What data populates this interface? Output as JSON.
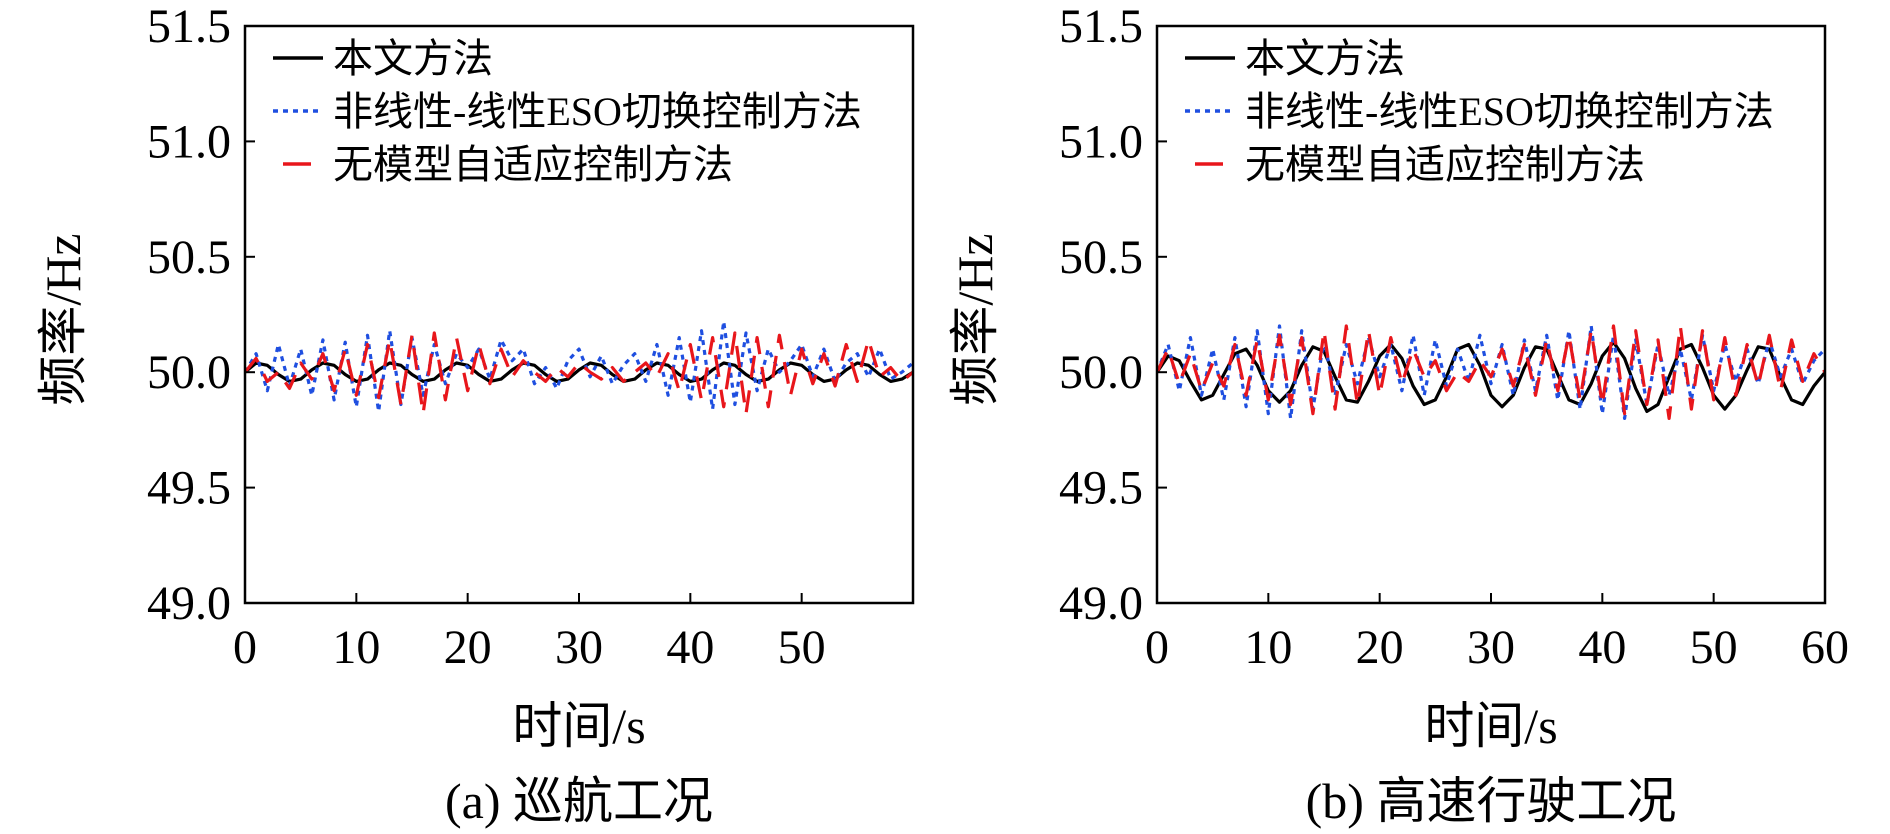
{
  "chart_data": [
    {
      "type": "line",
      "caption": "(a) 巡航工况",
      "xlabel": "时间/s",
      "ylabel": "频率/Hz",
      "xlim": [
        0,
        60
      ],
      "ylim": [
        49.0,
        51.5
      ],
      "xticks": [
        "0",
        "10",
        "20",
        "30",
        "40",
        "50"
      ],
      "yticks": [
        "49.0",
        "49.5",
        "50.0",
        "50.5",
        "51.0",
        "51.5"
      ],
      "legend_position": "top-left",
      "series": [
        {
          "name": "本文方法",
          "color": "#000000",
          "style": "solid",
          "x": [
            0,
            1,
            2,
            3,
            4,
            5,
            6,
            7,
            8,
            9,
            10,
            11,
            12,
            13,
            14,
            15,
            16,
            17,
            18,
            19,
            20,
            21,
            22,
            23,
            24,
            25,
            26,
            27,
            28,
            29,
            30,
            31,
            32,
            33,
            34,
            35,
            36,
            37,
            38,
            39,
            40,
            41,
            42,
            43,
            44,
            45,
            46,
            47,
            48,
            49,
            50,
            51,
            52,
            53,
            54,
            55,
            56,
            57,
            58,
            59,
            60
          ],
          "y": [
            50.0,
            50.04,
            50.03,
            49.99,
            49.96,
            49.97,
            50.01,
            50.04,
            50.03,
            49.99,
            49.96,
            49.97,
            50.01,
            50.04,
            50.03,
            49.99,
            49.96,
            49.97,
            50.01,
            50.04,
            50.03,
            49.99,
            49.96,
            49.97,
            50.01,
            50.04,
            50.03,
            49.99,
            49.96,
            49.97,
            50.01,
            50.04,
            50.03,
            49.99,
            49.96,
            49.97,
            50.01,
            50.04,
            50.03,
            49.99,
            49.96,
            49.97,
            50.01,
            50.04,
            50.03,
            49.99,
            49.96,
            49.97,
            50.01,
            50.04,
            50.03,
            49.99,
            49.96,
            49.97,
            50.01,
            50.04,
            50.03,
            49.99,
            49.96,
            49.97,
            50.0
          ]
        },
        {
          "name": "非线性-线性ESO切换控制方法",
          "color": "#1f4fe0",
          "style": "dotted",
          "x": [
            0,
            1,
            2,
            3,
            4,
            5,
            6,
            7,
            8,
            9,
            10,
            11,
            12,
            13,
            14,
            15,
            16,
            17,
            18,
            19,
            20,
            21,
            22,
            23,
            24,
            25,
            26,
            27,
            28,
            29,
            30,
            31,
            32,
            33,
            34,
            35,
            36,
            37,
            38,
            39,
            40,
            41,
            42,
            43,
            44,
            45,
            46,
            47,
            48,
            49,
            50,
            51,
            52,
            53,
            54,
            55,
            56,
            57,
            58,
            59,
            60
          ],
          "y": [
            50.0,
            50.08,
            49.92,
            50.12,
            49.94,
            50.1,
            49.9,
            50.14,
            49.88,
            50.13,
            49.85,
            50.16,
            49.83,
            50.18,
            49.86,
            50.15,
            49.9,
            50.12,
            49.95,
            50.08,
            50.02,
            50.1,
            49.97,
            50.14,
            50.05,
            50.1,
            49.95,
            50.02,
            49.93,
            50.05,
            50.1,
            49.98,
            50.07,
            49.95,
            50.03,
            50.08,
            49.96,
            50.12,
            49.9,
            50.15,
            49.87,
            50.18,
            49.84,
            50.22,
            49.86,
            50.17,
            49.92,
            50.1,
            50.0,
            50.05,
            50.12,
            49.98,
            50.1,
            49.96,
            50.04,
            50.08,
            49.98,
            50.1,
            49.97,
            50.0,
            50.04
          ]
        },
        {
          "name": "无模型自适应控制方法",
          "color": "#e8161b",
          "style": "dashed",
          "x": [
            0,
            1,
            2,
            3,
            4,
            5,
            6,
            7,
            8,
            9,
            10,
            11,
            12,
            13,
            14,
            15,
            16,
            17,
            18,
            19,
            20,
            21,
            22,
            23,
            24,
            25,
            26,
            27,
            28,
            29,
            30,
            31,
            32,
            33,
            34,
            35,
            36,
            37,
            38,
            39,
            40,
            41,
            42,
            43,
            44,
            45,
            46,
            47,
            48,
            49,
            50,
            51,
            52,
            53,
            54,
            55,
            56,
            57,
            58,
            59,
            60
          ],
          "y": [
            50.0,
            50.06,
            49.96,
            50.0,
            49.93,
            50.04,
            49.97,
            50.08,
            49.92,
            50.1,
            49.9,
            50.12,
            49.89,
            50.14,
            49.86,
            50.16,
            49.82,
            50.17,
            49.88,
            50.15,
            49.92,
            50.12,
            49.95,
            50.1,
            49.98,
            50.05,
            50.0,
            49.96,
            50.02,
            49.98,
            50.04,
            50.0,
            49.97,
            50.02,
            49.96,
            50.0,
            50.04,
            49.98,
            50.08,
            49.92,
            50.12,
            49.88,
            50.15,
            49.85,
            50.17,
            49.82,
            50.15,
            49.85,
            50.16,
            49.9,
            50.1,
            49.95,
            50.08,
            49.94,
            50.12,
            49.96,
            50.14,
            49.98,
            50.02,
            49.96,
            50.0
          ]
        }
      ]
    },
    {
      "type": "line",
      "caption": "(b) 高速行驶工况",
      "xlabel": "时间/s",
      "ylabel": "频率/Hz",
      "xlim": [
        0,
        60
      ],
      "ylim": [
        49.0,
        51.5
      ],
      "xticks": [
        "0",
        "10",
        "20",
        "30",
        "40",
        "50",
        "60"
      ],
      "yticks": [
        "49.0",
        "49.5",
        "50.0",
        "50.5",
        "51.0",
        "51.5"
      ],
      "legend_position": "top-left",
      "series": [
        {
          "name": "本文方法",
          "color": "#000000",
          "style": "solid",
          "x": [
            0,
            1,
            2,
            3,
            4,
            5,
            6,
            7,
            8,
            9,
            10,
            11,
            12,
            13,
            14,
            15,
            16,
            17,
            18,
            19,
            20,
            21,
            22,
            23,
            24,
            25,
            26,
            27,
            28,
            29,
            30,
            31,
            32,
            33,
            34,
            35,
            36,
            37,
            38,
            39,
            40,
            41,
            42,
            43,
            44,
            45,
            46,
            47,
            48,
            49,
            50,
            51,
            52,
            53,
            54,
            55,
            56,
            57,
            58,
            59,
            60
          ],
          "y": [
            50.0,
            50.07,
            50.05,
            49.96,
            49.88,
            49.9,
            49.99,
            50.08,
            50.1,
            50.03,
            49.92,
            49.87,
            49.92,
            50.03,
            50.11,
            50.09,
            49.98,
            49.88,
            49.87,
            49.96,
            50.07,
            50.12,
            50.06,
            49.94,
            49.86,
            49.88,
            49.98,
            50.1,
            50.12,
            50.03,
            49.9,
            49.85,
            49.9,
            50.02,
            50.11,
            50.1,
            49.99,
            49.88,
            49.86,
            49.95,
            50.07,
            50.13,
            50.06,
            49.93,
            49.83,
            49.86,
            49.98,
            50.1,
            50.12,
            50.02,
            49.9,
            49.84,
            49.9,
            50.01,
            50.11,
            50.1,
            49.98,
            49.88,
            49.86,
            49.94,
            50.0
          ]
        },
        {
          "name": "非线性-线性ESO切换控制方法",
          "color": "#1f4fe0",
          "style": "dotted",
          "x": [
            0,
            1,
            2,
            3,
            4,
            5,
            6,
            7,
            8,
            9,
            10,
            11,
            12,
            13,
            14,
            15,
            16,
            17,
            18,
            19,
            20,
            21,
            22,
            23,
            24,
            25,
            26,
            27,
            28,
            29,
            30,
            31,
            32,
            33,
            34,
            35,
            36,
            37,
            38,
            39,
            40,
            41,
            42,
            43,
            44,
            45,
            46,
            47,
            48,
            49,
            50,
            51,
            52,
            53,
            54,
            55,
            56,
            57,
            58,
            59,
            60
          ],
          "y": [
            50.0,
            50.12,
            49.92,
            50.15,
            49.9,
            50.1,
            49.88,
            50.15,
            49.85,
            50.18,
            49.82,
            50.2,
            49.8,
            50.18,
            49.84,
            50.14,
            49.9,
            50.12,
            49.95,
            50.15,
            49.98,
            50.12,
            49.92,
            50.16,
            49.9,
            50.14,
            49.94,
            50.1,
            49.96,
            50.16,
            49.95,
            50.12,
            49.9,
            50.14,
            49.92,
            50.16,
            49.88,
            50.18,
            49.84,
            50.2,
            49.82,
            50.16,
            49.8,
            50.14,
            49.86,
            50.12,
            49.9,
            50.1,
            49.88,
            50.16,
            49.92,
            50.12,
            49.96,
            50.1,
            49.95,
            50.14,
            49.98,
            50.1,
            49.95,
            50.05,
            50.1
          ]
        },
        {
          "name": "无模型自适应控制方法",
          "color": "#e8161b",
          "style": "dashed",
          "x": [
            0,
            1,
            2,
            3,
            4,
            5,
            6,
            7,
            8,
            9,
            10,
            11,
            12,
            13,
            14,
            15,
            16,
            17,
            18,
            19,
            20,
            21,
            22,
            23,
            24,
            25,
            26,
            27,
            28,
            29,
            30,
            31,
            32,
            33,
            34,
            35,
            36,
            37,
            38,
            39,
            40,
            41,
            42,
            43,
            44,
            45,
            46,
            47,
            48,
            49,
            50,
            51,
            52,
            53,
            54,
            55,
            56,
            57,
            58,
            59,
            60
          ],
          "y": [
            50.0,
            50.1,
            49.95,
            50.08,
            49.92,
            50.04,
            49.94,
            50.12,
            49.9,
            50.14,
            49.88,
            50.16,
            49.86,
            50.15,
            49.82,
            50.18,
            49.84,
            50.2,
            49.86,
            50.18,
            49.9,
            50.15,
            49.95,
            50.1,
            49.98,
            50.05,
            49.92,
            50.0,
            49.96,
            50.05,
            49.98,
            50.1,
            49.94,
            50.12,
            49.9,
            50.14,
            49.92,
            50.16,
            49.88,
            50.18,
            49.86,
            50.2,
            49.82,
            50.18,
            49.86,
            50.14,
            49.8,
            50.2,
            49.84,
            50.18,
            49.88,
            50.15,
            49.9,
            50.12,
            49.94,
            50.16,
            49.92,
            50.14,
            49.96,
            50.08,
            50.0
          ]
        }
      ]
    }
  ]
}
